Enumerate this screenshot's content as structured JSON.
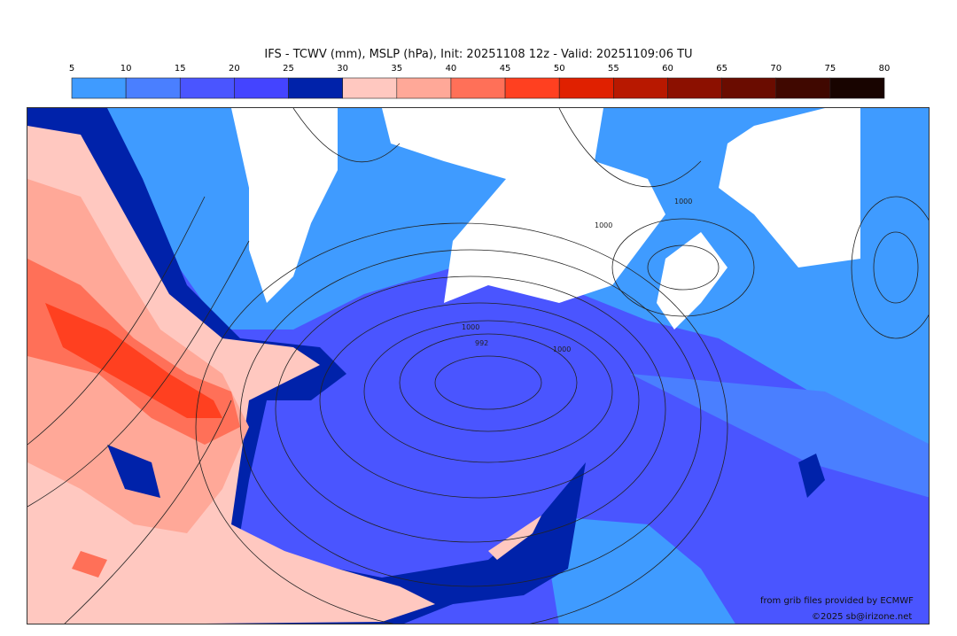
{
  "title": "IFS - TCWV (mm), MSLP (hPa), Init: 20251108 12z - Valid: 20251109:06 TU",
  "colorbar": {
    "ticks": [
      "5",
      "10",
      "15",
      "20",
      "25",
      "30",
      "35",
      "40",
      "45",
      "50",
      "55",
      "60",
      "65",
      "70",
      "75",
      "80"
    ],
    "colors": [
      "#3f9bff",
      "#4a7fff",
      "#4a55ff",
      "#4444ff",
      "#0022aa",
      "#ffc8c0",
      "#ffa898",
      "#ff7058",
      "#ff4020",
      "#e02000",
      "#b81800",
      "#8c1000",
      "#6a0c00",
      "#400800",
      "#180400"
    ]
  },
  "map": {
    "isobar_labels": [
      "1000",
      "992",
      "1000",
      "1000",
      "1000"
    ],
    "credit_source": "from grib files provided by ECMWF",
    "credit_copyright": "©2025 sb@irizone.net"
  }
}
